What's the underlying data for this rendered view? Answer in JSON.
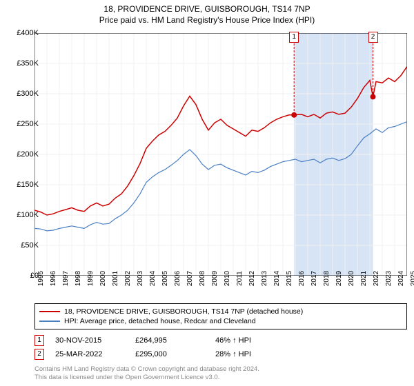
{
  "title": {
    "line1": "18, PROVIDENCE DRIVE, GUISBOROUGH, TS14 7NP",
    "line2": "Price paid vs. HM Land Registry's House Price Index (HPI)"
  },
  "chart": {
    "type": "line",
    "background_color": "#ffffff",
    "grid_color": "#f0f0f0",
    "axis_color": "#000000",
    "xlim": [
      1995,
      2025
    ],
    "ylim": [
      0,
      400000
    ],
    "ytick_step": 50000,
    "ytick_labels": [
      "£0",
      "£50K",
      "£100K",
      "£150K",
      "£200K",
      "£250K",
      "£300K",
      "£350K",
      "£400K"
    ],
    "xtick_labels": [
      "1995",
      "1996",
      "1997",
      "1998",
      "1999",
      "2000",
      "2001",
      "2002",
      "2003",
      "2004",
      "2005",
      "2006",
      "2007",
      "2008",
      "2009",
      "2010",
      "2011",
      "2012",
      "2013",
      "2014",
      "2015",
      "2016",
      "2017",
      "2018",
      "2019",
      "2020",
      "2021",
      "2022",
      "2023",
      "2024",
      "2025"
    ],
    "shaded_band": {
      "x_start": 2015.9,
      "x_end": 2022.25,
      "color": "#d6e4f5"
    },
    "series": [
      {
        "name": "price_paid",
        "label": "18, PROVIDENCE DRIVE, GUISBOROUGH, TS14 7NP (detached house)",
        "color": "#cc0000",
        "line_width": 1.5,
        "data": [
          [
            1995,
            108000
          ],
          [
            1995.5,
            105000
          ],
          [
            1996,
            100000
          ],
          [
            1996.5,
            102000
          ],
          [
            1997,
            106000
          ],
          [
            1997.5,
            109000
          ],
          [
            1998,
            112000
          ],
          [
            1998.5,
            108000
          ],
          [
            1999,
            106000
          ],
          [
            1999.5,
            115000
          ],
          [
            2000,
            120000
          ],
          [
            2000.5,
            115000
          ],
          [
            2001,
            118000
          ],
          [
            2001.5,
            128000
          ],
          [
            2002,
            135000
          ],
          [
            2002.5,
            148000
          ],
          [
            2003,
            165000
          ],
          [
            2003.5,
            185000
          ],
          [
            2004,
            210000
          ],
          [
            2004.5,
            222000
          ],
          [
            2005,
            232000
          ],
          [
            2005.5,
            238000
          ],
          [
            2006,
            248000
          ],
          [
            2006.5,
            260000
          ],
          [
            2007,
            280000
          ],
          [
            2007.5,
            296000
          ],
          [
            2008,
            282000
          ],
          [
            2008.5,
            258000
          ],
          [
            2009,
            240000
          ],
          [
            2009.5,
            252000
          ],
          [
            2010,
            258000
          ],
          [
            2010.5,
            248000
          ],
          [
            2011,
            242000
          ],
          [
            2011.5,
            236000
          ],
          [
            2012,
            230000
          ],
          [
            2012.5,
            240000
          ],
          [
            2013,
            238000
          ],
          [
            2013.5,
            244000
          ],
          [
            2014,
            252000
          ],
          [
            2014.5,
            258000
          ],
          [
            2015,
            262000
          ],
          [
            2015.5,
            265000
          ],
          [
            2015.9,
            264995
          ],
          [
            2016.5,
            266000
          ],
          [
            2017,
            262000
          ],
          [
            2017.5,
            266000
          ],
          [
            2018,
            260000
          ],
          [
            2018.5,
            268000
          ],
          [
            2019,
            270000
          ],
          [
            2019.5,
            266000
          ],
          [
            2020,
            268000
          ],
          [
            2020.5,
            278000
          ],
          [
            2021,
            292000
          ],
          [
            2021.5,
            310000
          ],
          [
            2022,
            322000
          ],
          [
            2022.25,
            295000
          ],
          [
            2022.5,
            320000
          ],
          [
            2023,
            318000
          ],
          [
            2023.5,
            326000
          ],
          [
            2024,
            320000
          ],
          [
            2024.5,
            330000
          ],
          [
            2025,
            345000
          ]
        ]
      },
      {
        "name": "hpi",
        "label": "HPI: Average price, detached house, Redcar and Cleveland",
        "color": "#4a7fc4",
        "line_width": 1.2,
        "data": [
          [
            1995,
            78000
          ],
          [
            1995.5,
            77000
          ],
          [
            1996,
            74000
          ],
          [
            1996.5,
            75000
          ],
          [
            1997,
            78000
          ],
          [
            1997.5,
            80000
          ],
          [
            1998,
            82000
          ],
          [
            1998.5,
            80000
          ],
          [
            1999,
            78000
          ],
          [
            1999.5,
            84000
          ],
          [
            2000,
            88000
          ],
          [
            2000.5,
            85000
          ],
          [
            2001,
            86000
          ],
          [
            2001.5,
            94000
          ],
          [
            2002,
            100000
          ],
          [
            2002.5,
            108000
          ],
          [
            2003,
            120000
          ],
          [
            2003.5,
            135000
          ],
          [
            2004,
            154000
          ],
          [
            2004.5,
            163000
          ],
          [
            2005,
            170000
          ],
          [
            2005.5,
            175000
          ],
          [
            2006,
            182000
          ],
          [
            2006.5,
            190000
          ],
          [
            2007,
            200000
          ],
          [
            2007.5,
            208000
          ],
          [
            2008,
            198000
          ],
          [
            2008.5,
            184000
          ],
          [
            2009,
            175000
          ],
          [
            2009.5,
            182000
          ],
          [
            2010,
            184000
          ],
          [
            2010.5,
            178000
          ],
          [
            2011,
            174000
          ],
          [
            2011.5,
            170000
          ],
          [
            2012,
            166000
          ],
          [
            2012.5,
            172000
          ],
          [
            2013,
            170000
          ],
          [
            2013.5,
            174000
          ],
          [
            2014,
            180000
          ],
          [
            2014.5,
            184000
          ],
          [
            2015,
            188000
          ],
          [
            2015.5,
            190000
          ],
          [
            2016,
            192000
          ],
          [
            2016.5,
            188000
          ],
          [
            2017,
            190000
          ],
          [
            2017.5,
            192000
          ],
          [
            2018,
            186000
          ],
          [
            2018.5,
            192000
          ],
          [
            2019,
            194000
          ],
          [
            2019.5,
            190000
          ],
          [
            2020,
            193000
          ],
          [
            2020.5,
            200000
          ],
          [
            2021,
            214000
          ],
          [
            2021.5,
            227000
          ],
          [
            2022,
            234000
          ],
          [
            2022.5,
            242000
          ],
          [
            2023,
            236000
          ],
          [
            2023.5,
            244000
          ],
          [
            2024,
            246000
          ],
          [
            2024.5,
            250000
          ],
          [
            2025,
            254000
          ]
        ]
      }
    ],
    "markers": [
      {
        "n": "1",
        "x": 2015.9,
        "y": 264995,
        "color": "#cc0000",
        "radius": 4
      },
      {
        "n": "2",
        "x": 2022.25,
        "y": 295000,
        "color": "#cc0000",
        "radius": 4
      }
    ]
  },
  "sales": [
    {
      "n": "1",
      "date": "30-NOV-2015",
      "price": "£264,995",
      "delta": "46% ↑ HPI"
    },
    {
      "n": "2",
      "date": "25-MAR-2022",
      "price": "£295,000",
      "delta": "28% ↑ HPI"
    }
  ],
  "footer": {
    "line1": "Contains HM Land Registry data © Crown copyright and database right 2024.",
    "line2": "This data is licensed under the Open Government Licence v3.0."
  }
}
